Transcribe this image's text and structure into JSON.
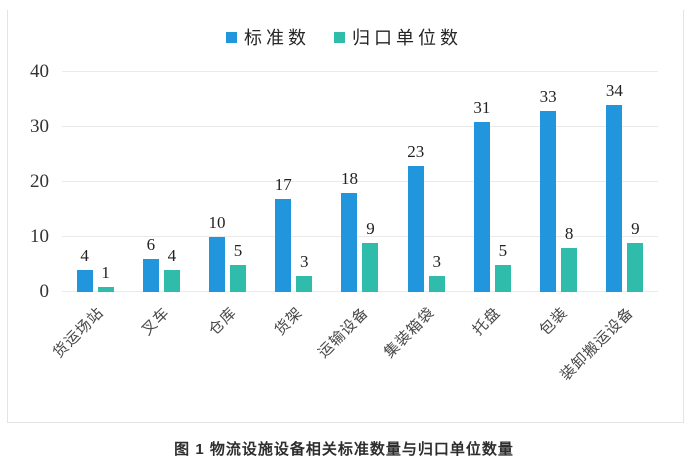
{
  "caption": "图 1 物流设施设备相关标准数量与归口单位数量",
  "chart_data": {
    "type": "bar",
    "title": "",
    "xlabel": "",
    "ylabel": "",
    "categories": [
      "货运场站",
      "叉车",
      "仓库",
      "货架",
      "运输设备",
      "集装箱袋",
      "托盘",
      "包装",
      "装卸搬运设备"
    ],
    "series": [
      {
        "name": "标准数",
        "color": "#2196DC",
        "values": [
          4,
          6,
          10,
          17,
          18,
          23,
          31,
          33,
          34
        ]
      },
      {
        "name": "归口单位数",
        "color": "#30BCAB",
        "values": [
          1,
          4,
          5,
          3,
          9,
          3,
          5,
          8,
          9
        ]
      }
    ],
    "ylim": [
      0,
      40
    ],
    "yticks": [
      0,
      10,
      20,
      30,
      40
    ],
    "grid": true,
    "legend_position": "top",
    "value_labels": true
  }
}
